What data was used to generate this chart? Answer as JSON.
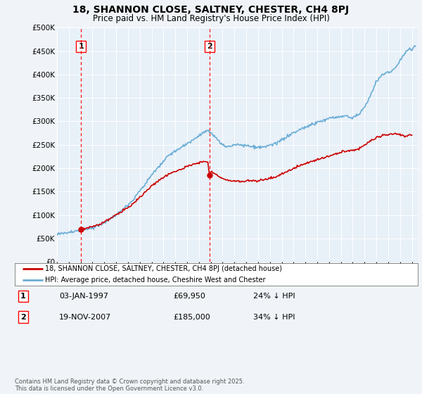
{
  "title": "18, SHANNON CLOSE, SALTNEY, CHESTER, CH4 8PJ",
  "subtitle": "Price paid vs. HM Land Registry's House Price Index (HPI)",
  "legend_line1": "18, SHANNON CLOSE, SALTNEY, CHESTER, CH4 8PJ (detached house)",
  "legend_line2": "HPI: Average price, detached house, Cheshire West and Chester",
  "transaction1_label": "1",
  "transaction1_date": "03-JAN-1997",
  "transaction1_price": "£69,950",
  "transaction1_hpi": "24% ↓ HPI",
  "transaction2_label": "2",
  "transaction2_date": "19-NOV-2007",
  "transaction2_price": "£185,000",
  "transaction2_hpi": "34% ↓ HPI",
  "footer": "Contains HM Land Registry data © Crown copyright and database right 2025.\nThis data is licensed under the Open Government Licence v3.0.",
  "hpi_color": "#6baed6",
  "price_color": "#cc0000",
  "bg_color": "#f0f4f8",
  "plot_bg": "#e8f0f8",
  "marker1_x": 1997.03,
  "marker1_y": 69950,
  "marker2_x": 2007.9,
  "marker2_y": 185000,
  "ylim": [
    0,
    500000
  ],
  "xlim_start": 1995.0,
  "xlim_end": 2025.5
}
